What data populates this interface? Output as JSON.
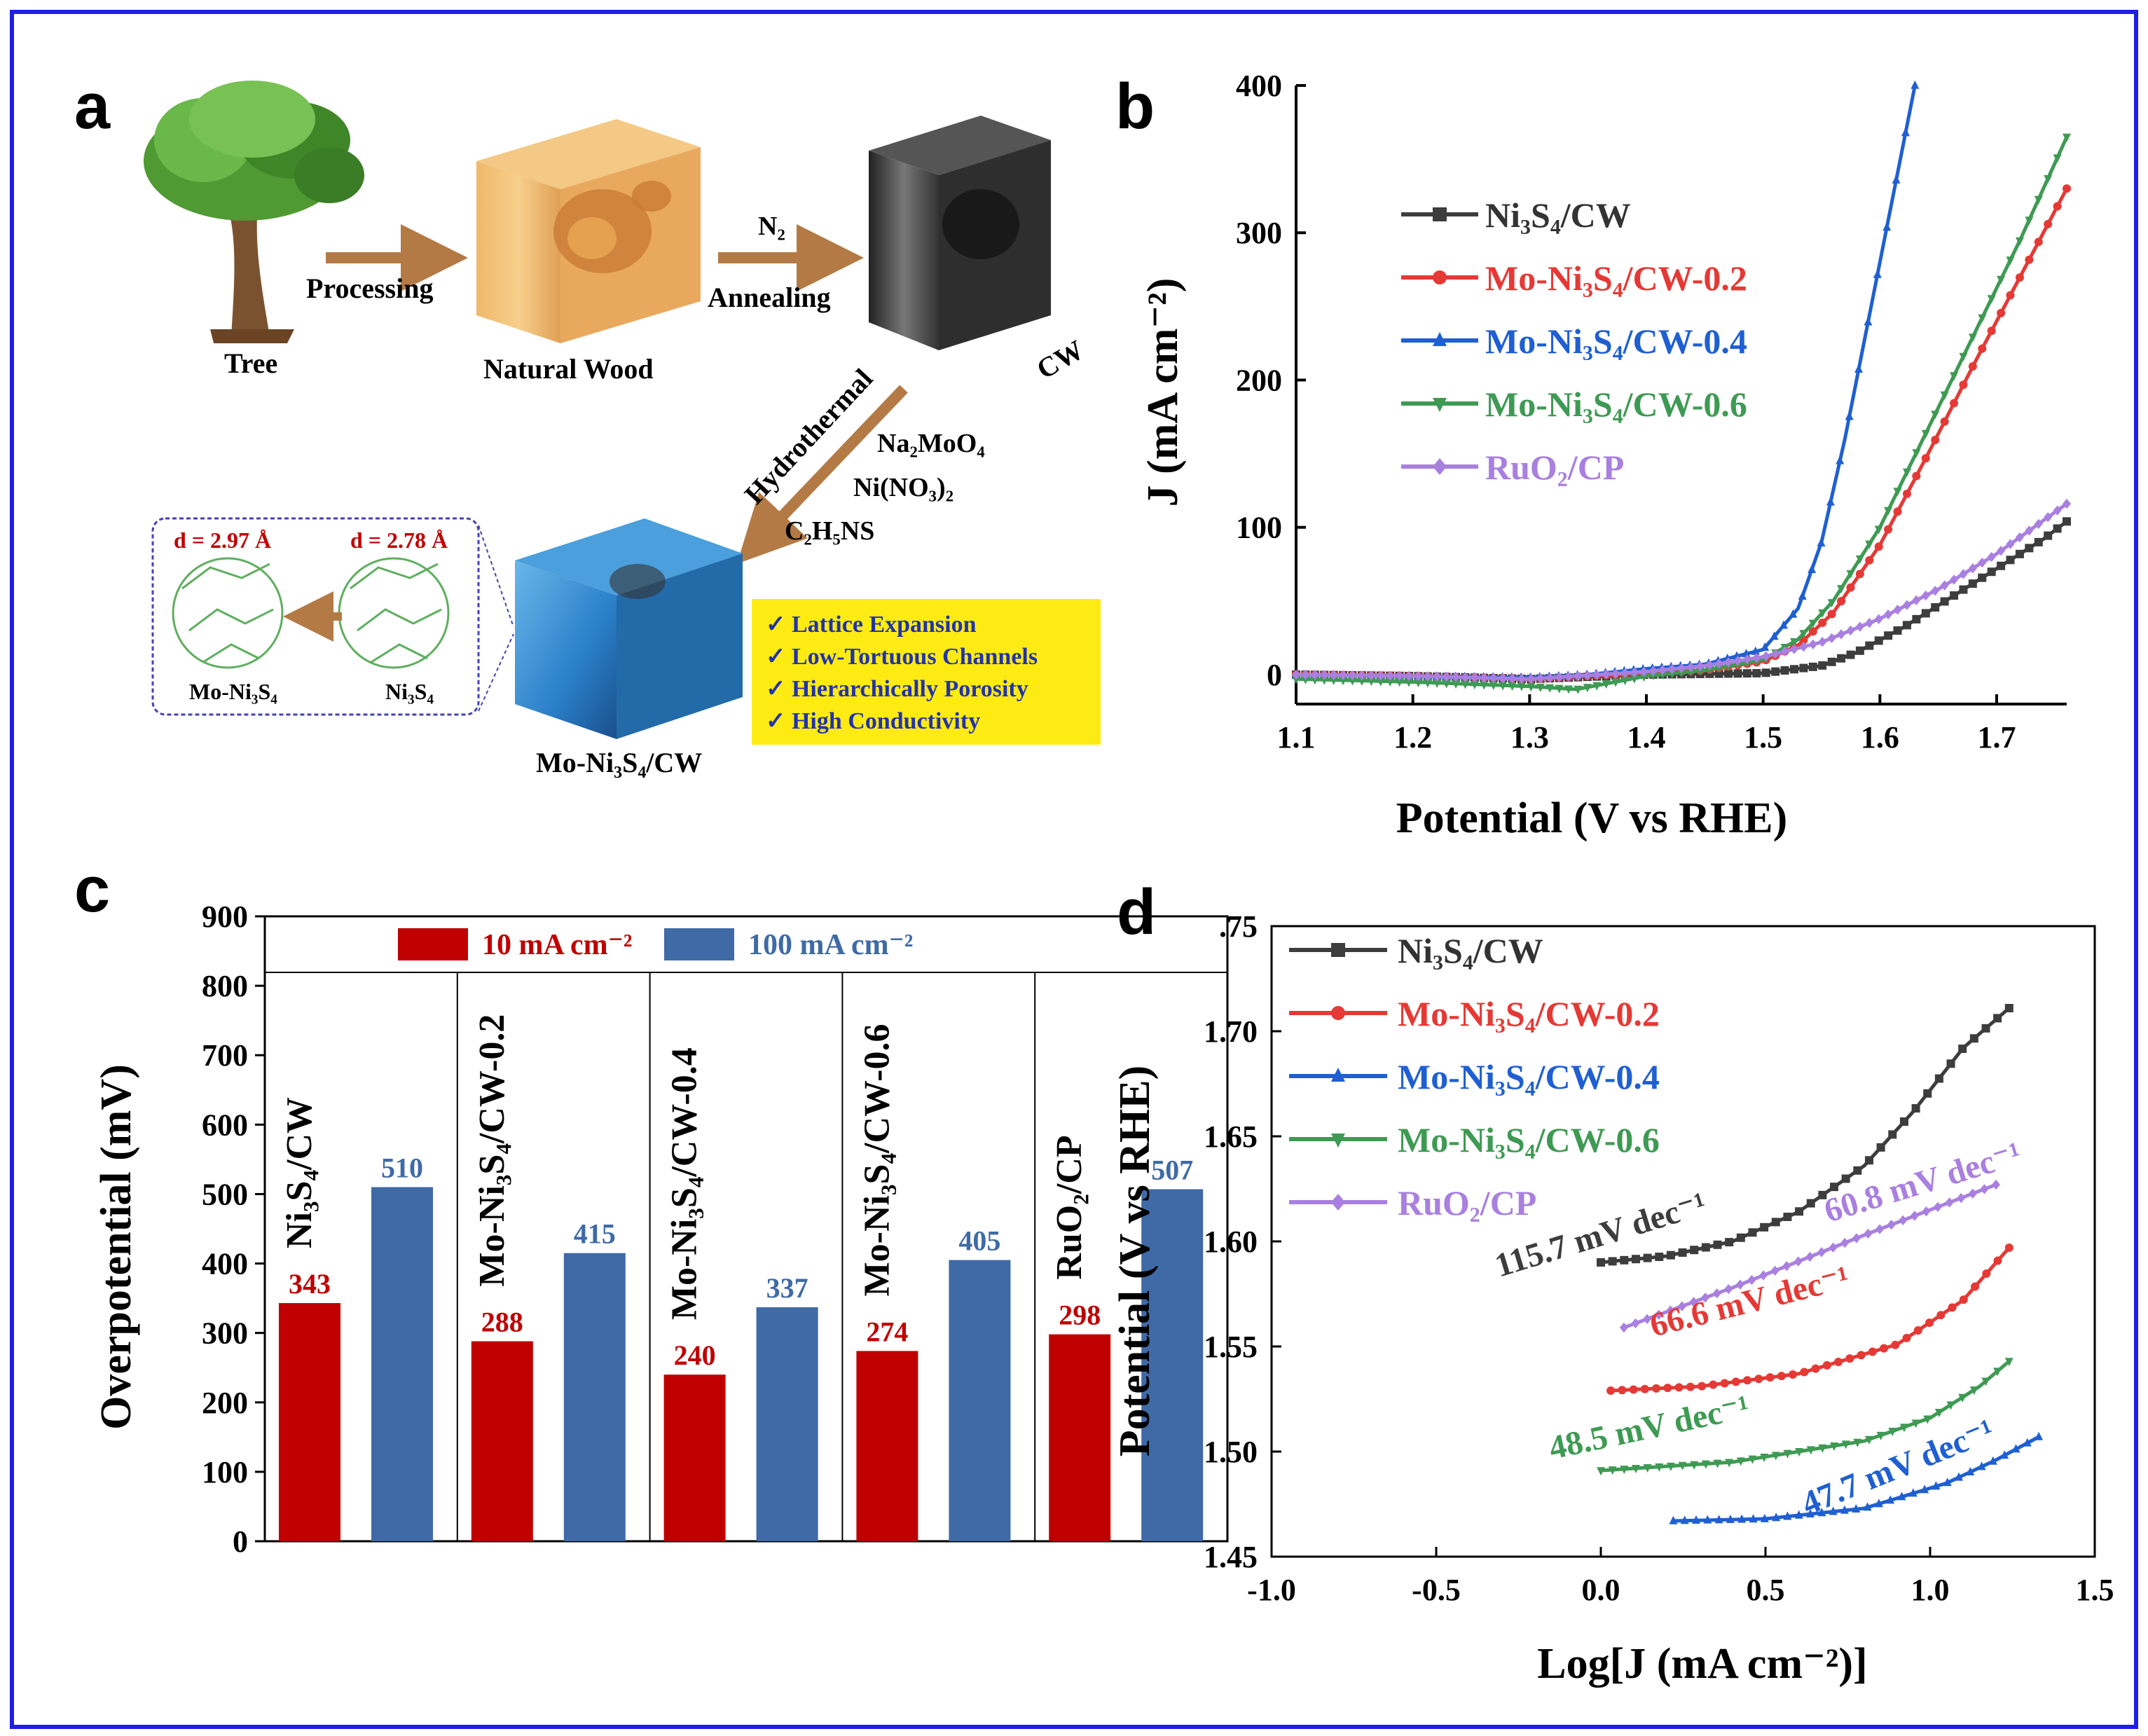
{
  "panels": {
    "a": "a",
    "b": "b",
    "c": "c",
    "d": "d"
  },
  "colors": {
    "border": "#1f1fe6",
    "ni3s4": "#3d3d3d",
    "mo02": "#e53935",
    "mo04": "#1f5fd1",
    "mo06": "#3e9a53",
    "ruo2": "#a97fe0",
    "bar10": "#c00000",
    "bar100": "#3f6aa6",
    "arrow": "#b47a45",
    "highlight": "#ffeb14",
    "d_label": "#c00000"
  },
  "schematic": {
    "tree": "Tree",
    "processing": "Processing",
    "natural_wood": "Natural Wood",
    "n2": "N₂",
    "annealing": "Annealing",
    "cw": "CW",
    "hydrothermal": "Hydrothermal",
    "reagent1": "Na₂MoO₄",
    "reagent2": "Ni(NO₃)₂",
    "reagent3": "C₂H₅NS",
    "d1": "d = 2.97 Å",
    "d2": "d = 2.78 Å",
    "crystal1": "Mo-Ni₃S₄",
    "crystal2": "Ni₃S₄",
    "product": "Mo-Ni₃S₄/CW",
    "features": [
      "✓ Lattice Expansion",
      "✓ Low-Tortuous Channels",
      "✓ Hierarchically Porosity",
      "✓ High Conductivity"
    ]
  },
  "chart_data": [
    {
      "panel": "b",
      "type": "line",
      "xlabel": "Potential (V vs RHE)",
      "ylabel": "J (mA cm⁻²)",
      "xlim": [
        1.1,
        1.76
      ],
      "ylim": [
        -20,
        400
      ],
      "xticks": [
        "1.1",
        "1.2",
        "1.3",
        "1.4",
        "1.5",
        "1.6",
        "1.7"
      ],
      "yticks": [
        "0",
        "100",
        "200",
        "300",
        "400"
      ],
      "legend": "top-left",
      "series": [
        {
          "name": "Ni₃S₄/CW",
          "color": "#3d3d3d",
          "marker": "square",
          "x": [
            1.1,
            1.2,
            1.3,
            1.4,
            1.5,
            1.55,
            1.58,
            1.62,
            1.66,
            1.7,
            1.74,
            1.76
          ],
          "y": [
            0,
            -1,
            -3,
            0,
            1,
            6,
            15,
            32,
            52,
            72,
            92,
            104
          ]
        },
        {
          "name": "Mo-Ni₃S₄/CW-0.2",
          "color": "#e53935",
          "marker": "circle",
          "x": [
            1.1,
            1.2,
            1.3,
            1.4,
            1.45,
            1.5,
            1.53,
            1.56,
            1.6,
            1.64,
            1.68,
            1.72,
            1.76
          ],
          "y": [
            0,
            -1,
            -3,
            1,
            3,
            9,
            20,
            42,
            88,
            148,
            210,
            270,
            330
          ]
        },
        {
          "name": "Mo-Ni₃S₄/CW-0.4",
          "color": "#1f5fd1",
          "marker": "triangle-up",
          "x": [
            1.1,
            1.2,
            1.3,
            1.35,
            1.4,
            1.45,
            1.5,
            1.53,
            1.55,
            1.57,
            1.59,
            1.61,
            1.63
          ],
          "y": [
            0,
            -1,
            -2,
            0,
            4,
            7,
            17,
            45,
            90,
            160,
            240,
            320,
            400
          ]
        },
        {
          "name": "Mo-Ni₃S₄/CW-0.6",
          "color": "#3e9a53",
          "marker": "triangle-down",
          "x": [
            1.1,
            1.2,
            1.3,
            1.34,
            1.4,
            1.45,
            1.5,
            1.53,
            1.56,
            1.6,
            1.64,
            1.68,
            1.72,
            1.76
          ],
          "y": [
            -3,
            -5,
            -8,
            -10,
            -1,
            3,
            10,
            24,
            50,
            100,
            165,
            230,
            295,
            365
          ]
        },
        {
          "name": "RuO₂/CP",
          "color": "#a97fe0",
          "marker": "diamond",
          "x": [
            1.1,
            1.2,
            1.3,
            1.4,
            1.45,
            1.5,
            1.55,
            1.6,
            1.65,
            1.7,
            1.76
          ],
          "y": [
            0,
            -1,
            -3,
            2,
            6,
            12,
            22,
            38,
            58,
            82,
            116
          ]
        }
      ]
    },
    {
      "panel": "c",
      "type": "bar",
      "ylabel": "Overpotential (mV)",
      "ylim": [
        0,
        900
      ],
      "yticks": [
        "0",
        "100",
        "200",
        "300",
        "400",
        "500",
        "600",
        "700",
        "800",
        "900"
      ],
      "legend": "top",
      "categories": [
        "Ni₃S₄/CW",
        "Mo-Ni₃S₄/CW-0.2",
        "Mo-Ni₃S₄/CW-0.4",
        "Mo-Ni₃S₄/CW-0.6",
        "RuO₂/CP"
      ],
      "series": [
        {
          "name": "10 mA cm⁻²",
          "color": "#c00000",
          "values": [
            343,
            288,
            240,
            274,
            298
          ]
        },
        {
          "name": "100 mA cm⁻²",
          "color": "#3f6aa6",
          "values": [
            510,
            415,
            337,
            405,
            507
          ]
        }
      ]
    },
    {
      "panel": "d",
      "type": "line",
      "xlabel": "Log[J (mA cm⁻²)]",
      "ylabel": "Potential (V vs RHE)",
      "xlim": [
        -1.0,
        1.5
      ],
      "ylim": [
        1.45,
        1.75
      ],
      "xticks": [
        "-1.0",
        "-0.5",
        "0.0",
        "0.5",
        "1.0",
        "1.5"
      ],
      "yticks": [
        "1.45",
        "1.50",
        "1.55",
        "1.60",
        "1.65",
        "1.70",
        ".75"
      ],
      "legend": "top-left",
      "series": [
        {
          "name": "Ni₃S₄/CW",
          "color": "#3d3d3d",
          "marker": "square",
          "slope": "115.7 mV dec⁻¹",
          "x": [
            0.0,
            0.2,
            0.4,
            0.6,
            0.8,
            0.95,
            1.1,
            1.24
          ],
          "y": [
            1.59,
            1.593,
            1.6,
            1.614,
            1.636,
            1.662,
            1.692,
            1.711
          ]
        },
        {
          "name": "Mo-Ni₃S₄/CW-0.2",
          "color": "#e53935",
          "marker": "circle",
          "slope": "66.6 mV dec⁻¹",
          "x": [
            0.03,
            0.3,
            0.6,
            0.9,
            1.1,
            1.24
          ],
          "y": [
            1.529,
            1.531,
            1.537,
            1.551,
            1.572,
            1.597
          ]
        },
        {
          "name": "Mo-Ni₃S₄/CW-0.4",
          "color": "#1f5fd1",
          "marker": "triangle-up",
          "slope": "47.7 mV dec⁻¹",
          "x": [
            0.22,
            0.5,
            0.8,
            1.05,
            1.2,
            1.33
          ],
          "y": [
            1.467,
            1.468,
            1.473,
            1.485,
            1.496,
            1.507
          ]
        },
        {
          "name": "Mo-Ni₃S₄/CW-0.6",
          "color": "#3e9a53",
          "marker": "triangle-down",
          "slope": "48.5 mV dec⁻¹",
          "x": [
            0.0,
            0.4,
            0.8,
            1.0,
            1.15,
            1.24
          ],
          "y": [
            1.491,
            1.495,
            1.505,
            1.516,
            1.531,
            1.543
          ]
        },
        {
          "name": "RuO₂/CP",
          "color": "#a97fe0",
          "marker": "diamond",
          "slope": "60.8 mV dec⁻¹",
          "x": [
            0.07,
            0.4,
            0.8,
            1.2
          ],
          "y": [
            1.559,
            1.578,
            1.603,
            1.627
          ]
        }
      ]
    }
  ]
}
